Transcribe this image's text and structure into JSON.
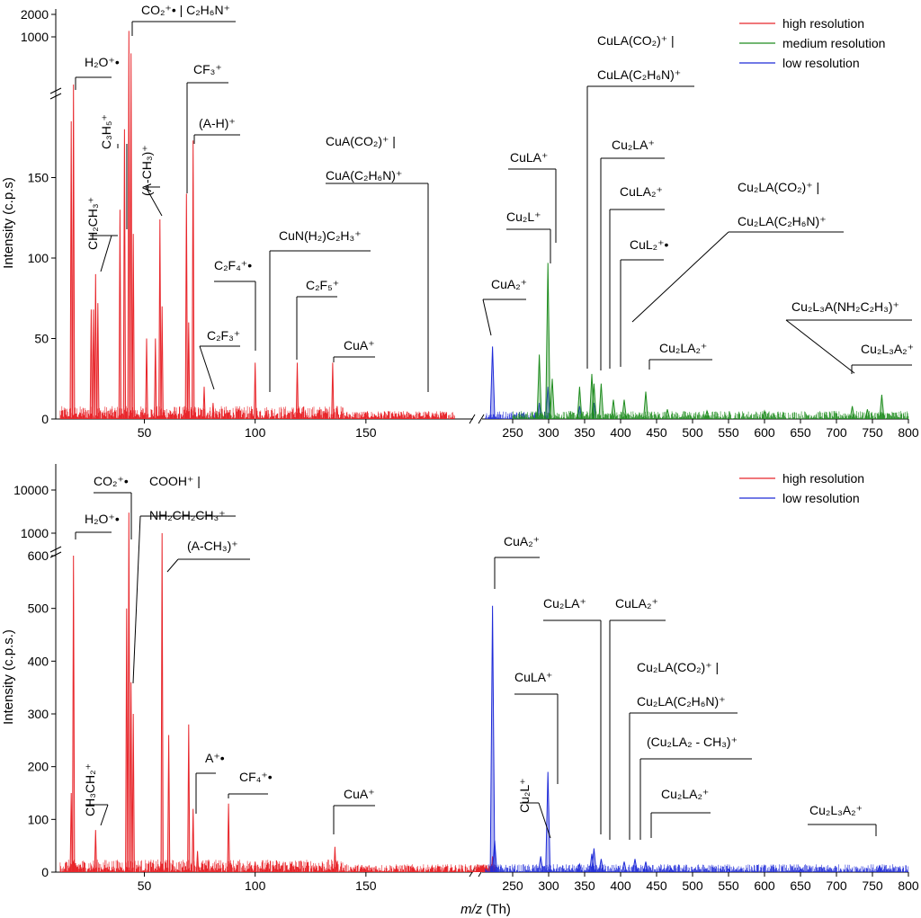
{
  "colors": {
    "high_resolution": "#e8262b",
    "medium_resolution": "#1e8c1e",
    "low_resolution": "#1f2bd8"
  },
  "chart_data": [
    {
      "type": "line",
      "panel": "top",
      "xlabel": "",
      "ylabel": "Intensity (c.p.s)",
      "x_axis": {
        "low_segment": {
          "range": [
            10,
            200
          ],
          "ticks": [
            "50",
            "100",
            "150"
          ]
        },
        "high_segment": {
          "range": [
            200,
            800
          ],
          "ticks": [
            "250",
            "300",
            "350",
            "400",
            "450",
            "500",
            "550",
            "600",
            "650",
            "700",
            "750",
            "800"
          ]
        }
      },
      "y_axis": {
        "linear_range": [
          0,
          200
        ],
        "linear_ticks": [
          "0",
          "50",
          "100",
          "150"
        ],
        "break_ticks": [
          "1000",
          "2000"
        ]
      },
      "legend": {
        "placement": "top-right",
        "entries": [
          "high resolution",
          "medium resolution",
          "low resolution"
        ]
      },
      "series": [
        {
          "name": "high resolution",
          "color_key": "high_resolution",
          "peaks": [
            [
              17,
              185
            ],
            [
              18,
              230
            ],
            [
              26,
              68
            ],
            [
              27,
              68
            ],
            [
              28,
              90
            ],
            [
              29,
              72
            ],
            [
              39,
              130
            ],
            [
              41,
              180
            ],
            [
              43,
              1200
            ],
            [
              44,
              600
            ],
            [
              45,
              115
            ],
            [
              51,
              50
            ],
            [
              55,
              50
            ],
            [
              57,
              124
            ],
            [
              58,
              70
            ],
            [
              69,
              140
            ],
            [
              70,
              60
            ],
            [
              72,
              173
            ],
            [
              77,
              20
            ],
            [
              81,
              10
            ],
            [
              100,
              35
            ],
            [
              105,
              5
            ],
            [
              119,
              35
            ],
            [
              131,
              5
            ],
            [
              135,
              35
            ],
            [
              137,
              8
            ],
            [
              150,
              4
            ],
            [
              170,
              3
            ],
            [
              180,
              3
            ]
          ]
        },
        {
          "name": "low resolution",
          "color_key": "low_resolution",
          "peaks": [
            [
              222,
              45
            ],
            [
              287,
              10
            ],
            [
              299,
              20
            ],
            [
              343,
              8
            ],
            [
              363,
              10
            ]
          ]
        },
        {
          "name": "medium resolution",
          "color_key": "medium_resolution",
          "peaks": [
            [
              287,
              40
            ],
            [
              299,
              97
            ],
            [
              305,
              25
            ],
            [
              343,
              20
            ],
            [
              360,
              28
            ],
            [
              363,
              22
            ],
            [
              373,
              22
            ],
            [
              390,
              12
            ],
            [
              405,
              12
            ],
            [
              435,
              17
            ],
            [
              465,
              6
            ],
            [
              520,
              5
            ],
            [
              600,
              5
            ],
            [
              722,
              8
            ],
            [
              743,
              6
            ],
            [
              763,
              15
            ]
          ]
        }
      ],
      "annotations": [
        {
          "lines": [
            "H₂O⁺•"
          ]
        },
        {
          "lines": [
            "CO₂⁺• | C₂H₆N⁺"
          ]
        },
        {
          "lines": [
            "C₃H₅⁺"
          ]
        },
        {
          "lines": [
            "CH₂CH₃⁺"
          ]
        },
        {
          "lines": [
            "(A-CH₃)⁺"
          ]
        },
        {
          "lines": [
            "CF₃⁺"
          ]
        },
        {
          "lines": [
            "(A-H)⁺"
          ]
        },
        {
          "lines": [
            "CuA(CO₂)⁺ |",
            "CuA(C₂H₆N)⁺"
          ]
        },
        {
          "lines": [
            "CuN(H₂)C₂H₃⁺"
          ]
        },
        {
          "lines": [
            "C₂F₄⁺•"
          ]
        },
        {
          "lines": [
            "C₂F₅⁺"
          ]
        },
        {
          "lines": [
            "C₂F₃⁺"
          ]
        },
        {
          "lines": [
            "CuA⁺"
          ]
        },
        {
          "lines": [
            "CuLA(CO₂)⁺ |",
            "CuLA(C₂H₆N)⁺"
          ]
        },
        {
          "lines": [
            "CuLA⁺"
          ]
        },
        {
          "lines": [
            "Cu₂LA⁺"
          ]
        },
        {
          "lines": [
            "CuLA₂⁺"
          ]
        },
        {
          "lines": [
            "Cu₂L⁺"
          ]
        },
        {
          "lines": [
            "Cu₂LA(CO₂)⁺ |",
            "Cu₂LA(C₂H₆N)⁺"
          ]
        },
        {
          "lines": [
            "CuL₂⁺•"
          ]
        },
        {
          "lines": [
            "CuA₂⁺"
          ]
        },
        {
          "lines": [
            "Cu₂L₃A(NH₂C₂H₃)⁺"
          ]
        },
        {
          "lines": [
            "Cu₂LA₂⁺"
          ]
        },
        {
          "lines": [
            "Cu₂L₃A₂⁺"
          ]
        }
      ]
    },
    {
      "type": "line",
      "panel": "bottom",
      "xlabel": "m/z (Th)",
      "ylabel": "Intensity (c.p.s.)",
      "x_axis": {
        "low_segment": {
          "range": [
            10,
            200
          ],
          "ticks": [
            "50",
            "100",
            "150"
          ]
        },
        "high_segment": {
          "range": [
            200,
            800
          ],
          "ticks": [
            "250",
            "300",
            "350",
            "400",
            "450",
            "500",
            "550",
            "600",
            "650",
            "700",
            "750",
            "800"
          ]
        }
      },
      "y_axis": {
        "linear_range": [
          0,
          600
        ],
        "linear_ticks": [
          "0",
          "100",
          "200",
          "300",
          "400",
          "500",
          "600"
        ],
        "break_ticks": [
          "1000",
          "10000"
        ]
      },
      "legend": {
        "placement": "top-right",
        "entries": [
          "high resolution",
          "low resolution"
        ]
      },
      "series": [
        {
          "name": "high resolution",
          "color_key": "high_resolution",
          "peaks": [
            [
              17,
              150
            ],
            [
              18,
              600
            ],
            [
              28,
              80
            ],
            [
              42,
              500
            ],
            [
              43,
              3000
            ],
            [
              44,
              360
            ],
            [
              45,
              300
            ],
            [
              58,
              1000
            ],
            [
              61,
              260
            ],
            [
              70,
              280
            ],
            [
              72,
              120
            ],
            [
              74,
              40
            ],
            [
              88,
              130
            ],
            [
              100,
              20
            ],
            [
              119,
              10
            ],
            [
              136,
              48
            ],
            [
              137,
              20
            ],
            [
              222,
              30
            ]
          ]
        },
        {
          "name": "low resolution",
          "color_key": "low_resolution",
          "peaks": [
            [
              222,
              505
            ],
            [
              225,
              60
            ],
            [
              289,
              30
            ],
            [
              299,
              190
            ],
            [
              343,
              15
            ],
            [
              360,
              35
            ],
            [
              363,
              45
            ],
            [
              373,
              25
            ],
            [
              405,
              20
            ],
            [
              420,
              25
            ],
            [
              435,
              20
            ],
            [
              470,
              8
            ],
            [
              550,
              6
            ],
            [
              650,
              6
            ],
            [
              760,
              12
            ]
          ]
        }
      ],
      "annotations": [
        {
          "lines": [
            "H₂O⁺•"
          ]
        },
        {
          "lines": [
            "CO₂⁺•"
          ]
        },
        {
          "lines": [
            "COOH⁺ |",
            "NH₂CH₂CH₃⁺"
          ]
        },
        {
          "lines": [
            "(A-CH₃)⁺"
          ]
        },
        {
          "lines": [
            "CH₃CH₂⁺"
          ]
        },
        {
          "lines": [
            "A⁺•"
          ]
        },
        {
          "lines": [
            "CF₄⁺•"
          ]
        },
        {
          "lines": [
            "CuA⁺"
          ]
        },
        {
          "lines": [
            "CuA₂⁺"
          ]
        },
        {
          "lines": [
            "Cu₂LA⁺"
          ]
        },
        {
          "lines": [
            "CuLA₂⁺"
          ]
        },
        {
          "lines": [
            "CuLA⁺"
          ]
        },
        {
          "lines": [
            "Cu₂L⁺"
          ]
        },
        {
          "lines": [
            "Cu₂LA(CO₂)⁺ |",
            "Cu₂LA(C₂H₆N)⁺"
          ]
        },
        {
          "lines": [
            "(Cu₂LA₂ - CH₃)⁺"
          ]
        },
        {
          "lines": [
            "Cu₂LA₂⁺"
          ]
        },
        {
          "lines": [
            "Cu₂L₃A₂⁺"
          ]
        }
      ]
    }
  ]
}
